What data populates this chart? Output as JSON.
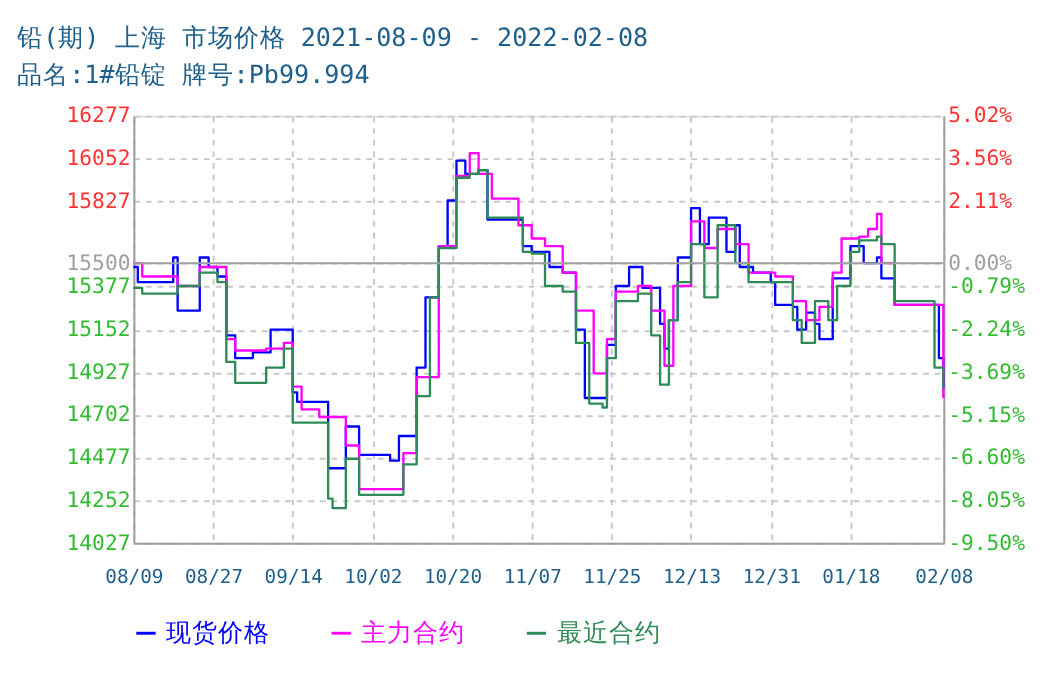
{
  "chart_data": {
    "type": "step",
    "title": "铅(期) 上海 市场价格 2021-08-09 - 2022-02-08",
    "subtitle": "品名:1#铅锭 牌号:Pb99.994",
    "xlim": [
      "2021-08-09",
      "2022-02-08"
    ],
    "xticks": [
      {
        "value": "2021-08-09",
        "label": "08/09"
      },
      {
        "value": "2021-08-27",
        "label": "08/27"
      },
      {
        "value": "2021-09-14",
        "label": "09/14"
      },
      {
        "value": "2021-10-02",
        "label": "10/02"
      },
      {
        "value": "2021-10-20",
        "label": "10/20"
      },
      {
        "value": "2021-11-07",
        "label": "11/07"
      },
      {
        "value": "2021-11-25",
        "label": "11/25"
      },
      {
        "value": "2021-12-13",
        "label": "12/13"
      },
      {
        "value": "2021-12-31",
        "label": "12/31"
      },
      {
        "value": "2022-01-18",
        "label": "01/18"
      },
      {
        "value": "2022-02-08",
        "label": "02/08"
      }
    ],
    "ylim": [
      14027,
      16277
    ],
    "yticks": [
      14027,
      14252,
      14477,
      14702,
      14927,
      15152,
      15377,
      15500,
      15827,
      16052,
      16277
    ],
    "y2lim": [
      -9.5,
      5.02
    ],
    "y2ticks": [
      {
        "value": -9.5,
        "label": "-9.50%"
      },
      {
        "value": -8.05,
        "label": "-8.05%"
      },
      {
        "value": -6.6,
        "label": "-6.60%"
      },
      {
        "value": -5.15,
        "label": "-5.15%"
      },
      {
        "value": -3.69,
        "label": "-3.69%"
      },
      {
        "value": -2.24,
        "label": "-2.24%"
      },
      {
        "value": -0.79,
        "label": "-0.79%"
      },
      {
        "value": 0.0,
        "label": "0.00%"
      },
      {
        "value": 2.11,
        "label": "2.11%"
      },
      {
        "value": 3.56,
        "label": "3.56%"
      },
      {
        "value": 5.02,
        "label": "5.02%"
      }
    ],
    "ref_lines": [
      {
        "axis": "y",
        "value": 15500,
        "color": "#a0a0a0",
        "line_style": "solid"
      }
    ],
    "grid": true,
    "legend": "bottom",
    "marker": "none",
    "line_style": "solid",
    "series": [
      {
        "name": "现货价格",
        "color": "#0000ff",
        "x": [
          "2021-08-09",
          "2021-08-10",
          "2021-08-18",
          "2021-08-19",
          "2021-08-22",
          "2021-08-24",
          "2021-08-26",
          "2021-08-28",
          "2021-08-30",
          "2021-09-01",
          "2021-09-05",
          "2021-09-09",
          "2021-09-12",
          "2021-09-14",
          "2021-09-15",
          "2021-09-20",
          "2021-09-22",
          "2021-09-26",
          "2021-09-29",
          "2021-10-06",
          "2021-10-08",
          "2021-10-12",
          "2021-10-14",
          "2021-10-17",
          "2021-10-19",
          "2021-10-21",
          "2021-10-23",
          "2021-10-26",
          "2021-10-28",
          "2021-11-02",
          "2021-11-05",
          "2021-11-07",
          "2021-11-10",
          "2021-11-11",
          "2021-11-14",
          "2021-11-17",
          "2021-11-19",
          "2021-11-22",
          "2021-11-24",
          "2021-11-26",
          "2021-11-29",
          "2021-12-02",
          "2021-12-06",
          "2021-12-07",
          "2021-12-08",
          "2021-12-10",
          "2021-12-13",
          "2021-12-15",
          "2021-12-17",
          "2021-12-19",
          "2021-12-21",
          "2021-12-23",
          "2021-12-24",
          "2021-12-27",
          "2021-12-31",
          "2022-01-01",
          "2022-01-05",
          "2022-01-06",
          "2022-01-08",
          "2022-01-10",
          "2022-01-11",
          "2022-01-13",
          "2022-01-14",
          "2022-01-16",
          "2022-01-18",
          "2022-01-21",
          "2022-01-24",
          "2022-01-25",
          "2022-01-28",
          "2022-02-06",
          "2022-02-07",
          "2022-02-08"
        ],
        "values": [
          15480,
          15400,
          15530,
          15250,
          15250,
          15530,
          15480,
          15430,
          15120,
          15000,
          15030,
          15150,
          15150,
          14820,
          14770,
          14770,
          14420,
          14640,
          14490,
          14460,
          14590,
          14950,
          15320,
          15590,
          15830,
          16040,
          15970,
          15990,
          15730,
          15730,
          15590,
          15560,
          15560,
          15480,
          15450,
          15150,
          14790,
          14790,
          15070,
          15380,
          15480,
          15370,
          15180,
          15050,
          15200,
          15530,
          15790,
          15600,
          15740,
          15740,
          15560,
          15700,
          15480,
          15450,
          15400,
          15280,
          15270,
          15150,
          15240,
          15180,
          15100,
          15100,
          15420,
          15420,
          15590,
          15500,
          15530,
          15420,
          15280,
          15280,
          15000,
          14840
        ]
      },
      {
        "name": "主力合约",
        "color": "#ff00ff",
        "x": [
          "2021-08-09",
          "2021-08-11",
          "2021-08-17",
          "2021-08-19",
          "2021-08-24",
          "2021-08-30",
          "2021-09-01",
          "2021-09-08",
          "2021-09-12",
          "2021-09-14",
          "2021-09-16",
          "2021-09-20",
          "2021-09-26",
          "2021-09-29",
          "2021-10-08",
          "2021-10-09",
          "2021-10-12",
          "2021-10-17",
          "2021-10-21",
          "2021-10-24",
          "2021-10-26",
          "2021-10-29",
          "2021-11-02",
          "2021-11-04",
          "2021-11-07",
          "2021-11-10",
          "2021-11-14",
          "2021-11-17",
          "2021-11-21",
          "2021-11-24",
          "2021-11-26",
          "2021-12-01",
          "2021-12-04",
          "2021-12-07",
          "2021-12-09",
          "2021-12-13",
          "2021-12-16",
          "2021-12-19",
          "2021-12-23",
          "2021-12-26",
          "2022-01-01",
          "2022-01-05",
          "2022-01-08",
          "2022-01-11",
          "2022-01-14",
          "2022-01-16",
          "2022-01-20",
          "2022-01-22",
          "2022-01-24",
          "2022-01-25",
          "2022-01-28",
          "2022-02-06",
          "2022-02-08"
        ],
        "values": [
          15500,
          15430,
          15430,
          15380,
          15480,
          15100,
          15040,
          15050,
          15080,
          14850,
          14730,
          14690,
          14540,
          14310,
          14310,
          14500,
          14900,
          15590,
          15960,
          16080,
          15970,
          15840,
          15840,
          15700,
          15630,
          15590,
          15450,
          15250,
          14920,
          15100,
          15350,
          15380,
          15250,
          14960,
          15380,
          15720,
          15580,
          15680,
          15600,
          15450,
          15430,
          15300,
          15200,
          15270,
          15450,
          15630,
          15640,
          15680,
          15760,
          15500,
          15280,
          15280,
          14790
        ]
      },
      {
        "name": "最近合约",
        "color": "#2e8b57",
        "x": [
          "2021-08-09",
          "2021-08-11",
          "2021-08-17",
          "2021-08-19",
          "2021-08-24",
          "2021-08-28",
          "2021-08-30",
          "2021-09-01",
          "2021-09-08",
          "2021-09-12",
          "2021-09-14",
          "2021-09-20",
          "2021-09-22",
          "2021-09-23",
          "2021-09-26",
          "2021-09-29",
          "2021-10-08",
          "2021-10-09",
          "2021-10-12",
          "2021-10-15",
          "2021-10-17",
          "2021-10-21",
          "2021-10-24",
          "2021-10-26",
          "2021-10-28",
          "2021-11-02",
          "2021-11-05",
          "2021-11-07",
          "2021-11-10",
          "2021-11-14",
          "2021-11-17",
          "2021-11-20",
          "2021-11-23",
          "2021-11-24",
          "2021-11-26",
          "2021-12-01",
          "2021-12-04",
          "2021-12-06",
          "2021-12-08",
          "2021-12-10",
          "2021-12-13",
          "2021-12-16",
          "2021-12-19",
          "2021-12-23",
          "2021-12-26",
          "2022-01-01",
          "2022-01-05",
          "2022-01-07",
          "2022-01-10",
          "2022-01-13",
          "2022-01-15",
          "2022-01-18",
          "2022-01-20",
          "2022-01-24",
          "2022-01-25",
          "2022-01-28",
          "2022-02-05",
          "2022-02-06",
          "2022-02-08"
        ],
        "values": [
          15370,
          15340,
          15340,
          15380,
          15450,
          15400,
          14980,
          14870,
          14950,
          15050,
          14660,
          14660,
          14260,
          14210,
          14470,
          14280,
          14280,
          14440,
          14800,
          15320,
          15580,
          15950,
          15970,
          15990,
          15740,
          15740,
          15560,
          15550,
          15380,
          15350,
          15080,
          14760,
          14740,
          15000,
          15300,
          15340,
          15120,
          14860,
          15200,
          15400,
          15600,
          15320,
          15700,
          15500,
          15400,
          15400,
          15200,
          15080,
          15300,
          15200,
          15380,
          15560,
          15620,
          15640,
          15600,
          15300,
          15300,
          14950,
          14840
        ]
      }
    ]
  }
}
